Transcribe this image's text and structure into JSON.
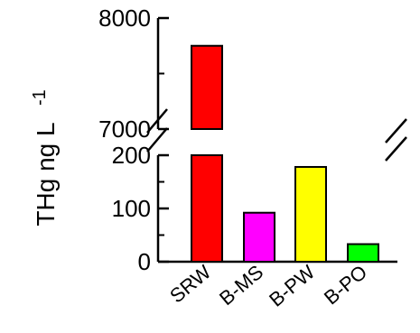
{
  "chart_data": {
    "type": "bar",
    "ylabel": "THg ng L",
    "ylabel_superscript": "-1",
    "categories": [
      "SRW",
      "B-MS",
      "B-PW",
      "B-PO"
    ],
    "values": [
      7750,
      92,
      178,
      33
    ],
    "colors": [
      "#ff0000",
      "#ff00ff",
      "#ffff00",
      "#00ff00"
    ],
    "y_axis_break": true,
    "lower_segment": {
      "ylim": [
        0,
        200
      ],
      "ticks": [
        "0",
        "100",
        "200"
      ]
    },
    "upper_segment": {
      "ylim": [
        7000,
        8000
      ],
      "ticks": [
        "7000",
        "8000"
      ],
      "minor_ticks": [
        7500
      ]
    },
    "grid": false,
    "legend": "none"
  }
}
